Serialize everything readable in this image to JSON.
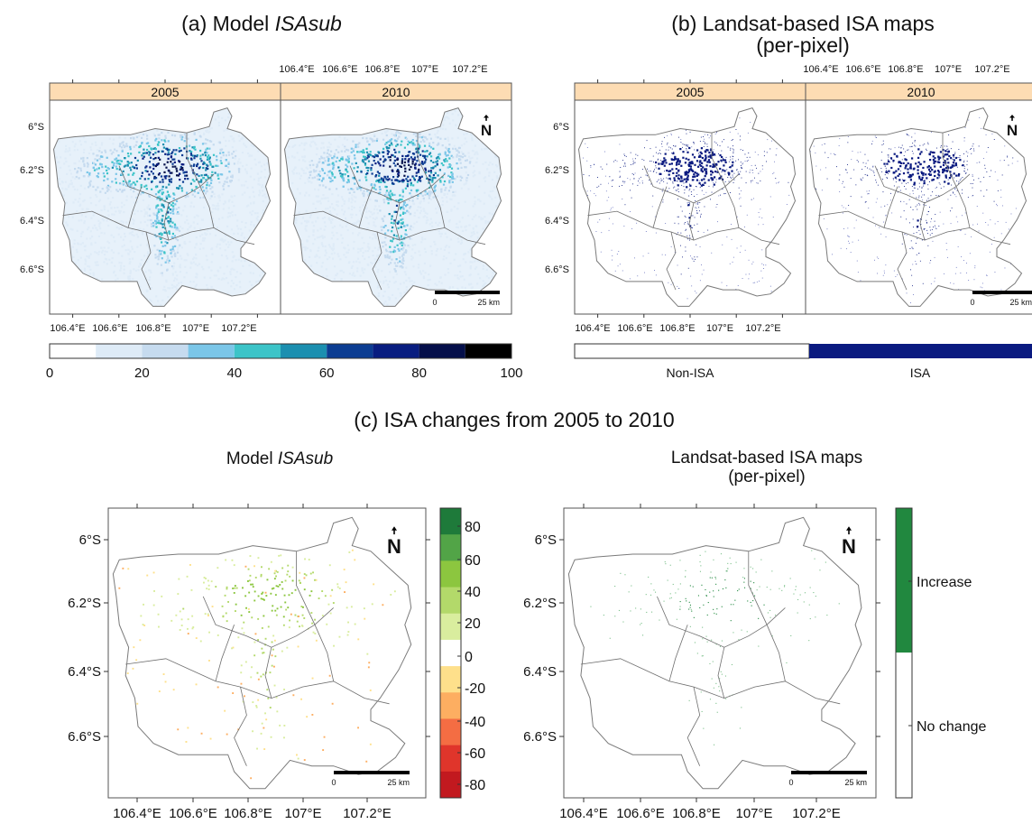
{
  "figure": {
    "panel_a": {
      "title_prefix": "(a) Model ",
      "title_italic": "ISAsub"
    },
    "panel_b": {
      "title_line1": "(b) Landsat-based ISA maps",
      "title_line2": "(per-pixel)"
    },
    "panel_c": {
      "title": "(c) ISA changes from 2005 to 2010"
    },
    "panel_c_left": {
      "title_prefix": "Model ",
      "title_italic": "ISAsub"
    },
    "panel_c_right": {
      "title_line1": "Landsat-based ISA maps",
      "title_line2": "(per-pixel)"
    }
  },
  "strips": [
    "2005",
    "2010"
  ],
  "axes": {
    "lon_ticks": [
      "106.4°E",
      "106.6°E",
      "106.8°E",
      "107°E",
      "107.2°E"
    ],
    "lat_ticks": [
      "6°S",
      "6.2°S",
      "6.4°S",
      "6.6°S"
    ]
  },
  "scale_bar": {
    "zero": "0",
    "dist": "25 km"
  },
  "north_arrow": {
    "glyph": "N",
    "icon": "north-arrow-icon"
  },
  "legend_a": {
    "labels": [
      "0",
      "20",
      "40",
      "60",
      "80",
      "100"
    ],
    "colors": [
      "#ffffff",
      "#deebf7",
      "#c6dbef",
      "#7bc6e8",
      "#3cc4c8",
      "#1b8fb0",
      "#0c3d92",
      "#081d80",
      "#040f4a",
      "#000000"
    ]
  },
  "legend_b": {
    "labels": [
      "Non-ISA",
      "ISA"
    ],
    "colors": [
      "#ffffff",
      "#0a1a80"
    ]
  },
  "legend_c_left": {
    "labels": [
      "80",
      "60",
      "40",
      "20",
      "0",
      "-20",
      "-40",
      "-60",
      "-80"
    ],
    "colors": [
      "#1e7a3a",
      "#52a447",
      "#8cc63f",
      "#b3d96a",
      "#d9ed9e",
      "#ffffff",
      "#fee08b",
      "#fdae61",
      "#f46d43",
      "#e0352b",
      "#c2191f"
    ]
  },
  "legend_c_right": {
    "labels": [
      "Increase",
      "No change"
    ],
    "colors": [
      "#21883f",
      "#ffffff"
    ]
  }
}
